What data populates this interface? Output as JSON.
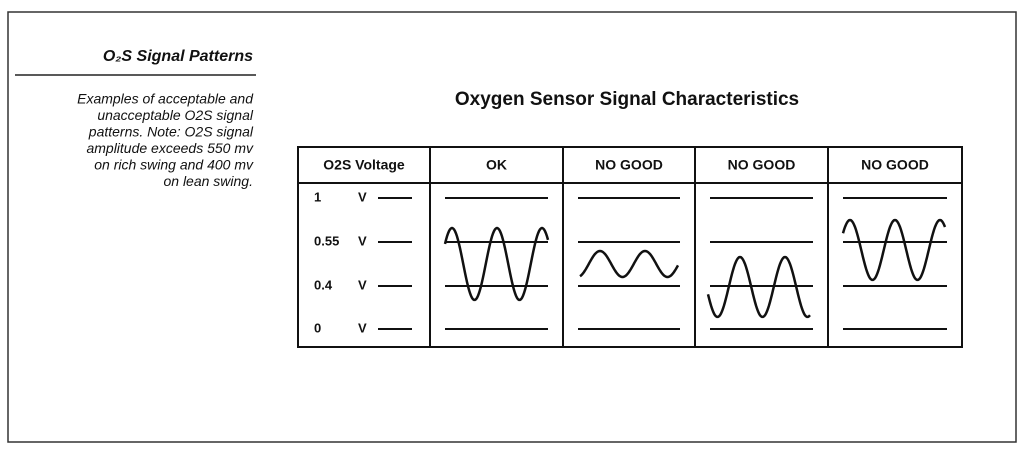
{
  "sidebar": {
    "title": "O₂S Signal Patterns",
    "description_lines": [
      "Examples of acceptable and",
      "unacceptable O2S signal",
      "patterns.  Note: O2S signal",
      "amplitude exceeds 550 mv",
      "on rich swing and 400 mv",
      "on lean swing."
    ]
  },
  "diagram": {
    "title": "Oxygen Sensor Signal Characteristics",
    "headers": [
      "O2S Voltage",
      "OK",
      "NO GOOD",
      "NO GOOD",
      "NO GOOD"
    ],
    "levels": [
      {
        "label": "1",
        "unit": "V"
      },
      {
        "label": "0.55",
        "unit": "V"
      },
      {
        "label": "0.4",
        "unit": "V"
      },
      {
        "label": "0",
        "unit": "V"
      }
    ]
  }
}
